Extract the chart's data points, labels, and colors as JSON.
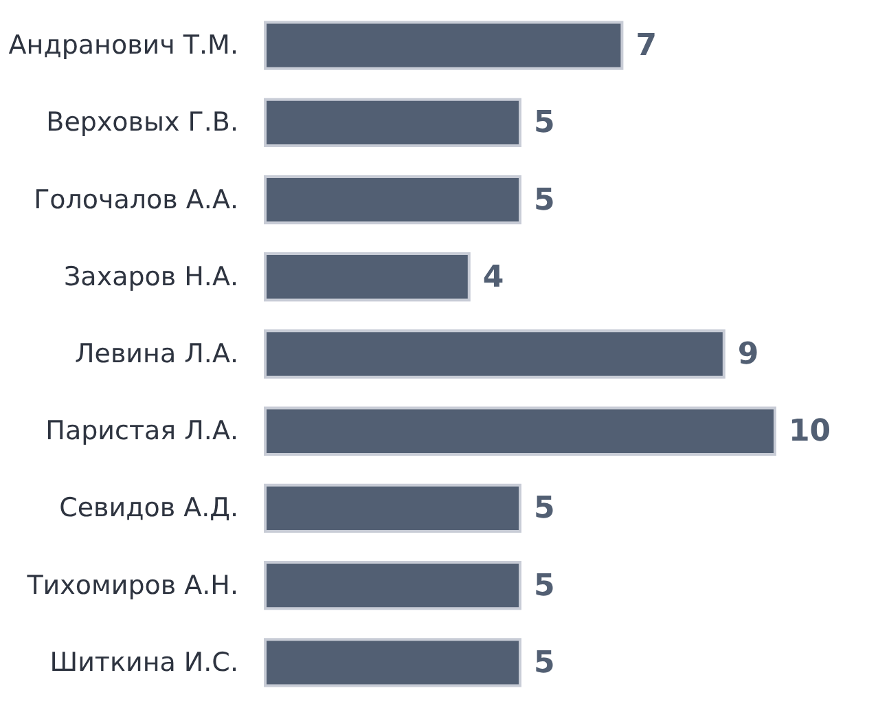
{
  "chart_data": {
    "type": "bar",
    "orientation": "horizontal",
    "categories": [
      "Андранович Т.М.",
      "Верховых Г.В.",
      "Голочалов А.А.",
      "Захаров Н.А.",
      "Левина Л.А.",
      "Паристая Л.А.",
      "Севидов А.Д.",
      "Тихомиров А.Н.",
      "Шиткина И.С."
    ],
    "values": [
      7,
      5,
      5,
      4,
      9,
      10,
      5,
      5,
      5
    ],
    "color": "#525f73",
    "data_labels": true
  }
}
